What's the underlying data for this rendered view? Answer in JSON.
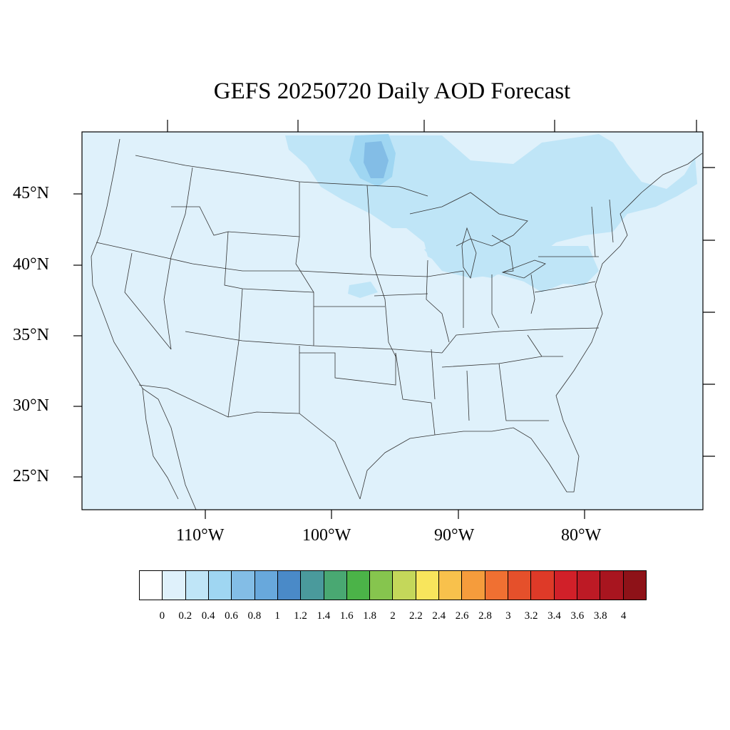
{
  "title": "GEFS 20250720 Daily AOD Forecast",
  "lat_labels": [
    "45°N",
    "40°N",
    "35°N",
    "30°N",
    "25°N"
  ],
  "lon_labels": [
    "110°W",
    "100°W",
    "90°W",
    "80°W"
  ],
  "colorbar": {
    "labels": [
      "0",
      "0.2",
      "0.4",
      "0.6",
      "0.8",
      "1",
      "1.2",
      "1.4",
      "1.6",
      "1.8",
      "2",
      "2.2",
      "2.4",
      "2.6",
      "2.8",
      "3",
      "3.2",
      "3.4",
      "3.6",
      "3.8",
      "4"
    ],
    "colors": [
      "#ffffff",
      "#dff1fb",
      "#bfe5f7",
      "#9fd6f2",
      "#83bde6",
      "#68a8dc",
      "#4a8ac8",
      "#4a9a9c",
      "#49a872",
      "#4bb348",
      "#86c54e",
      "#c4d75a",
      "#f8e55c",
      "#f8c14c",
      "#f59c3c",
      "#f07032",
      "#e5502b",
      "#de3a28",
      "#d12029",
      "#bd1a25",
      "#a8151f",
      "#8e1218"
    ]
  },
  "map": {
    "background_aod_color": "#dff1fb",
    "plume_color_light": "#bfe5f7",
    "plume_color_mid": "#9fd6f2",
    "plume_color_high": "#83bde6"
  }
}
